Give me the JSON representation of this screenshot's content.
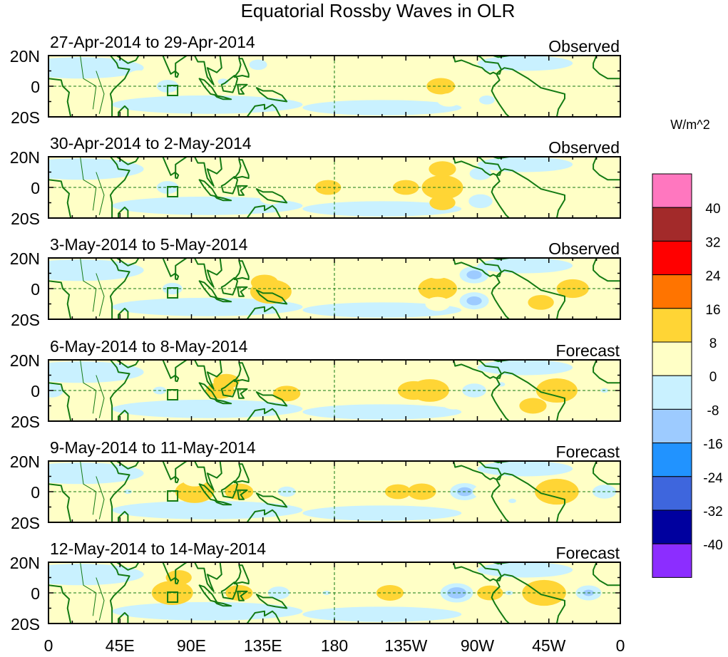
{
  "chart_data": {
    "type": "heatmap",
    "title": "Equatorial Rossby Waves in OLR",
    "units": "W/m^2",
    "x_ticks": [
      "0",
      "45E",
      "90E",
      "135E",
      "180",
      "135W",
      "90W",
      "45W",
      "0"
    ],
    "y_ticks": [
      "20N",
      "0",
      "20S"
    ],
    "xlim_deg_east": [
      0,
      360
    ],
    "ylim_deg": [
      -20,
      20
    ],
    "colorbar": {
      "levels": [
        "40",
        "32",
        "24",
        "16",
        "8",
        "0",
        "-8",
        "-16",
        "-24",
        "-32",
        "-40"
      ],
      "colors": [
        "#ff77bf",
        "#a32a2a",
        "#ff0000",
        "#ff7400",
        "#ffd535",
        "#ffffc6",
        "#c9f1ff",
        "#9dcbff",
        "#2193ff",
        "#3e66dd",
        "#00009f",
        "#8c2dff"
      ]
    },
    "panels": [
      {
        "label": "27-Apr-2014 to 29-Apr-2014",
        "status": "Observed",
        "features": [
          {
            "lon": 57,
            "lat": 6,
            "v": 6
          },
          {
            "lon": 75,
            "lat": 0,
            "v": -14
          },
          {
            "lon": 110,
            "lat": 3,
            "v": -9
          },
          {
            "lon": 132,
            "lat": 14,
            "v": -12
          },
          {
            "lon": 155,
            "lat": -5,
            "v": -5
          },
          {
            "lon": 190,
            "lat": 0,
            "v": 7
          },
          {
            "lon": 218,
            "lat": 0,
            "v": -5
          },
          {
            "lon": 247,
            "lat": 0,
            "v": 10
          },
          {
            "lon": 252,
            "lat": 12,
            "v": 7
          },
          {
            "lon": 252,
            "lat": -9,
            "v": 6
          },
          {
            "lon": 278,
            "lat": 13,
            "v": -12
          },
          {
            "lon": 276,
            "lat": -9,
            "v": -11
          },
          {
            "lon": 295,
            "lat": 0,
            "v": -5
          },
          {
            "lon": 315,
            "lat": 6,
            "v": 5
          },
          {
            "lon": 340,
            "lat": -6,
            "v": 5
          },
          {
            "lon": 15,
            "lat": -5,
            "v": -5
          }
        ]
      },
      {
        "label": "30-Apr-2014 to 2-May-2014",
        "status": "Observed",
        "features": [
          {
            "lon": 10,
            "lat": -3,
            "v": -6
          },
          {
            "lon": 60,
            "lat": 0,
            "v": -6
          },
          {
            "lon": 75,
            "lat": 0,
            "v": -14
          },
          {
            "lon": 95,
            "lat": 5,
            "v": -7
          },
          {
            "lon": 140,
            "lat": 6,
            "v": 7
          },
          {
            "lon": 140,
            "lat": -7,
            "v": 5
          },
          {
            "lon": 176,
            "lat": 0,
            "v": 8
          },
          {
            "lon": 225,
            "lat": 0,
            "v": 8
          },
          {
            "lon": 248,
            "lat": 0,
            "v": 20
          },
          {
            "lon": 248,
            "lat": 12,
            "v": 9
          },
          {
            "lon": 248,
            "lat": -10,
            "v": 8
          },
          {
            "lon": 272,
            "lat": 9,
            "v": -14
          },
          {
            "lon": 272,
            "lat": -9,
            "v": -15
          },
          {
            "lon": 300,
            "lat": 0,
            "v": -5
          },
          {
            "lon": 330,
            "lat": 4,
            "v": -5
          }
        ]
      },
      {
        "label": "3-May-2014 to 5-May-2014",
        "status": "Observed",
        "features": [
          {
            "lon": 30,
            "lat": -2,
            "v": -5
          },
          {
            "lon": 65,
            "lat": -4,
            "v": -7
          },
          {
            "lon": 78,
            "lat": 0,
            "v": -13
          },
          {
            "lon": 108,
            "lat": 5,
            "v": -7
          },
          {
            "lon": 136,
            "lat": 4,
            "v": 9
          },
          {
            "lon": 140,
            "lat": -2,
            "v": 20
          },
          {
            "lon": 164,
            "lat": 0,
            "v": -7
          },
          {
            "lon": 176,
            "lat": 0,
            "v": 7
          },
          {
            "lon": 245,
            "lat": 0,
            "v": 18
          },
          {
            "lon": 245,
            "lat": 11,
            "v": 7
          },
          {
            "lon": 245,
            "lat": -10,
            "v": 7
          },
          {
            "lon": 268,
            "lat": 9,
            "v": -18
          },
          {
            "lon": 268,
            "lat": -8,
            "v": -18
          },
          {
            "lon": 310,
            "lat": -9,
            "v": 8
          },
          {
            "lon": 330,
            "lat": 0,
            "v": 13
          },
          {
            "lon": 350,
            "lat": 0,
            "v": -5
          }
        ]
      },
      {
        "label": "6-May-2014 to 8-May-2014",
        "status": "Forecast",
        "features": [
          {
            "lon": 2,
            "lat": 0,
            "v": -15
          },
          {
            "lon": 45,
            "lat": 0,
            "v": -6
          },
          {
            "lon": 70,
            "lat": 0,
            "v": -10
          },
          {
            "lon": 108,
            "lat": 0,
            "v": 10
          },
          {
            "lon": 112,
            "lat": 6,
            "v": 8
          },
          {
            "lon": 150,
            "lat": -2,
            "v": 9
          },
          {
            "lon": 170,
            "lat": 0,
            "v": 6
          },
          {
            "lon": 185,
            "lat": 0,
            "v": -5
          },
          {
            "lon": 230,
            "lat": 0,
            "v": 13
          },
          {
            "lon": 240,
            "lat": 0,
            "v": 18
          },
          {
            "lon": 255,
            "lat": -8,
            "v": 6
          },
          {
            "lon": 268,
            "lat": 0,
            "v": -15
          },
          {
            "lon": 285,
            "lat": 4,
            "v": -8
          },
          {
            "lon": 305,
            "lat": -10,
            "v": 9
          },
          {
            "lon": 320,
            "lat": 0,
            "v": 20
          },
          {
            "lon": 350,
            "lat": 0,
            "v": -8
          }
        ]
      },
      {
        "label": "9-May-2014 to 11-May-2014",
        "status": "Forecast",
        "features": [
          {
            "lon": 50,
            "lat": 0,
            "v": -8
          },
          {
            "lon": 92,
            "lat": 0,
            "v": 18
          },
          {
            "lon": 92,
            "lat": 8,
            "v": 7
          },
          {
            "lon": 120,
            "lat": 0,
            "v": 10
          },
          {
            "lon": 150,
            "lat": 0,
            "v": -12
          },
          {
            "lon": 220,
            "lat": 0,
            "v": 8
          },
          {
            "lon": 235,
            "lat": 0,
            "v": 10
          },
          {
            "lon": 262,
            "lat": 0,
            "v": -18
          },
          {
            "lon": 275,
            "lat": 0,
            "v": 7
          },
          {
            "lon": 292,
            "lat": -6,
            "v": -8
          },
          {
            "lon": 320,
            "lat": 0,
            "v": 22
          },
          {
            "lon": 350,
            "lat": 0,
            "v": -15
          }
        ]
      },
      {
        "label": "12-May-2014 to 14-May-2014",
        "status": "Forecast",
        "features": [
          {
            "lon": 40,
            "lat": -3,
            "v": -6
          },
          {
            "lon": 78,
            "lat": 0,
            "v": 20
          },
          {
            "lon": 82,
            "lat": 10,
            "v": 8
          },
          {
            "lon": 120,
            "lat": 0,
            "v": 9
          },
          {
            "lon": 145,
            "lat": 0,
            "v": -14
          },
          {
            "lon": 175,
            "lat": 0,
            "v": -8
          },
          {
            "lon": 215,
            "lat": 0,
            "v": 9
          },
          {
            "lon": 233,
            "lat": 0,
            "v": 7
          },
          {
            "lon": 257,
            "lat": 0,
            "v": -20
          },
          {
            "lon": 278,
            "lat": 0,
            "v": 8
          },
          {
            "lon": 290,
            "lat": 0,
            "v": -8
          },
          {
            "lon": 312,
            "lat": 0,
            "v": 22
          },
          {
            "lon": 340,
            "lat": 0,
            "v": -16
          }
        ]
      }
    ]
  }
}
